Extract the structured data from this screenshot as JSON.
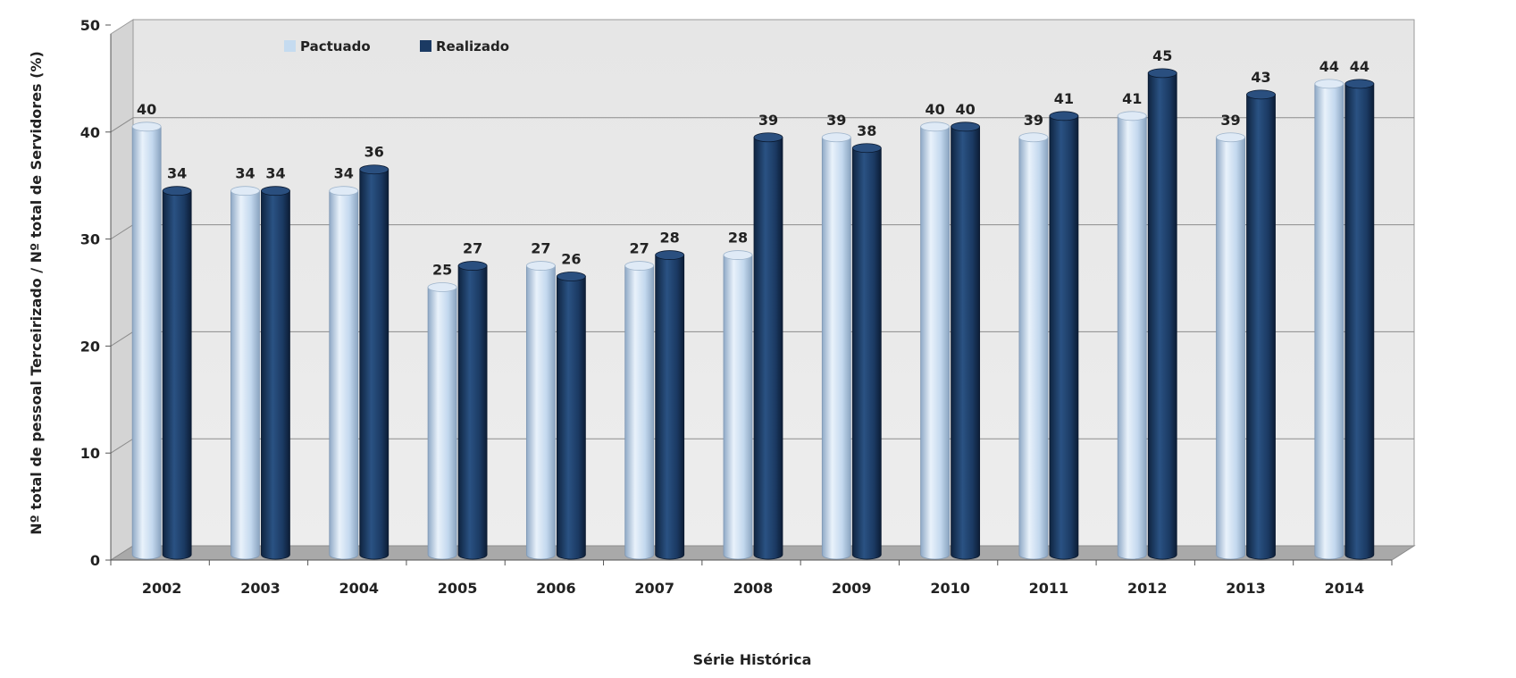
{
  "chart_data": {
    "type": "bar",
    "title": "",
    "xlabel": "Série Histórica",
    "ylabel": "Nº total de pessoal Terceirizado / Nº total de Servidores (%)",
    "ylim": [
      0,
      50
    ],
    "yticks": [
      "0",
      "10",
      "20",
      "30",
      "40",
      "50"
    ],
    "grid": true,
    "legend_position": "top-left",
    "categories": [
      "2002",
      "2003",
      "2004",
      "2005",
      "2006",
      "2007",
      "2008",
      "2009",
      "2010",
      "2011",
      "2012",
      "2013",
      "2014"
    ],
    "series": [
      {
        "name": "Pactuado",
        "color": "#c5dbf0",
        "values": [
          40,
          34,
          34,
          25,
          27,
          27,
          28,
          39,
          40,
          39,
          41,
          39,
          44
        ],
        "labels": [
          "40",
          "34",
          "34",
          "25",
          "27",
          "27",
          "28",
          "39",
          "40",
          "39",
          "41",
          "39",
          "44"
        ]
      },
      {
        "name": "Realizado",
        "color": "#1b3a63",
        "values": [
          34,
          34,
          36,
          27,
          26,
          28,
          39,
          38,
          40,
          41,
          45,
          43,
          44
        ],
        "labels": [
          "34",
          "34",
          "36",
          "27",
          "26",
          "28",
          "39",
          "38",
          "40",
          "41",
          "45",
          "43",
          "44"
        ]
      }
    ]
  }
}
